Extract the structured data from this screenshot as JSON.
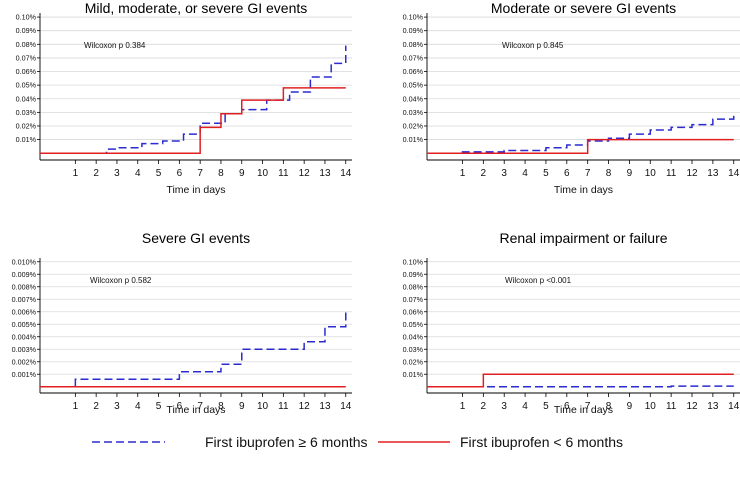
{
  "chart_data": [
    {
      "type": "line",
      "title": "Mild, moderate, or severe GI events",
      "xlabel": "Time in days",
      "ylabel": "",
      "annotation": "Wilcoxon p 0.384",
      "x_ticks": [
        1,
        2,
        3,
        4,
        5,
        6,
        7,
        8,
        9,
        10,
        11,
        12,
        13,
        14
      ],
      "y_ticks": [
        "0.01%",
        "0.02%",
        "0.03%",
        "0.04%",
        "0.05%",
        "0.06%",
        "0.07%",
        "0.08%",
        "0.09%",
        "0.10%"
      ],
      "y_tick_values": [
        0.01,
        0.02,
        0.03,
        0.04,
        0.05,
        0.06,
        0.07,
        0.08,
        0.09,
        0.1
      ],
      "xlim": [
        -0.7,
        14.3
      ],
      "ylim": [
        -0.005,
        0.103
      ],
      "series": [
        {
          "name": "First ibuprofen ≥ 6 months",
          "style": "dashed",
          "color": "#2b2bd0",
          "x": [
            -0.7,
            2,
            2.5,
            3,
            3.5,
            4.2,
            4.7,
            5.2,
            5.7,
            6.2,
            6.7,
            7,
            7.5,
            8.2,
            8.7,
            9,
            9.5,
            10.2,
            10.7,
            11.3,
            11.8,
            12.3,
            12.8,
            13.3,
            13.8,
            14
          ],
          "y": [
            0,
            0,
            0.003,
            0.004,
            0.004,
            0.007,
            0.007,
            0.009,
            0.009,
            0.014,
            0.014,
            0.022,
            0.022,
            0.029,
            0.029,
            0.032,
            0.032,
            0.039,
            0.039,
            0.045,
            0.045,
            0.056,
            0.056,
            0.066,
            0.066,
            0.079
          ]
        },
        {
          "name": "First ibuprofen < 6 months",
          "style": "solid",
          "color": "#e02020",
          "x": [
            -0.7,
            7,
            8,
            9,
            11,
            14
          ],
          "y": [
            0,
            0.019,
            0.029,
            0.039,
            0.048,
            0.048
          ]
        }
      ]
    },
    {
      "type": "line",
      "title": "Moderate or severe GI events",
      "xlabel": "Time in days",
      "ylabel": "",
      "annotation": "Wilcoxon p 0.845",
      "x_ticks": [
        1,
        2,
        3,
        4,
        5,
        6,
        7,
        8,
        9,
        10,
        11,
        12,
        13,
        14
      ],
      "y_ticks": [
        "0.01%",
        "0.02%",
        "0.03%",
        "0.04%",
        "0.05%",
        "0.06%",
        "0.07%",
        "0.08%",
        "0.09%",
        "0.10%"
      ],
      "y_tick_values": [
        0.01,
        0.02,
        0.03,
        0.04,
        0.05,
        0.06,
        0.07,
        0.08,
        0.09,
        0.1
      ],
      "xlim": [
        -0.7,
        14.3
      ],
      "ylim": [
        -0.005,
        0.103
      ],
      "series": [
        {
          "name": "First ibuprofen ≥ 6 months",
          "style": "dashed",
          "color": "#2b2bd0",
          "x": [
            -0.7,
            1,
            3,
            5,
            6,
            7,
            8,
            9,
            10,
            11,
            12,
            13,
            14
          ],
          "y": [
            0,
            0.001,
            0.002,
            0.004,
            0.006,
            0.009,
            0.011,
            0.014,
            0.017,
            0.019,
            0.021,
            0.025,
            0.03
          ]
        },
        {
          "name": "First ibuprofen < 6 months",
          "style": "solid",
          "color": "#e02020",
          "x": [
            -0.7,
            7,
            14
          ],
          "y": [
            0,
            0.01,
            0.01
          ]
        }
      ]
    },
    {
      "type": "line",
      "title": "Severe GI events",
      "xlabel": "Time in days",
      "ylabel": "",
      "annotation": "Wilcoxon p 0.582",
      "x_ticks": [
        1,
        2,
        3,
        4,
        5,
        6,
        7,
        8,
        9,
        10,
        11,
        12,
        13,
        14
      ],
      "y_ticks": [
        "0.001%",
        "0.002%",
        "0.003%",
        "0.004%",
        "0.005%",
        "0.006%",
        "0.007%",
        "0.008%",
        "0.009%",
        "0.010%"
      ],
      "y_tick_values": [
        0.001,
        0.002,
        0.003,
        0.004,
        0.005,
        0.006,
        0.007,
        0.008,
        0.009,
        0.01
      ],
      "xlim": [
        -0.7,
        14.3
      ],
      "ylim": [
        -0.0005,
        0.0103
      ],
      "series": [
        {
          "name": "First ibuprofen ≥ 6 months",
          "style": "dashed",
          "color": "#2b2bd0",
          "x": [
            -0.7,
            1,
            6,
            8,
            9,
            12,
            12.8,
            13,
            14
          ],
          "y": [
            0,
            0.0006,
            0.0012,
            0.0018,
            0.003,
            0.0036,
            0.0036,
            0.0048,
            0.006
          ]
        },
        {
          "name": "First ibuprofen < 6 months",
          "style": "solid",
          "color": "#e02020",
          "x": [
            -0.7,
            14
          ],
          "y": [
            0,
            0
          ]
        }
      ]
    },
    {
      "type": "line",
      "title": "Renal impairment or failure",
      "xlabel": "Time in days",
      "ylabel": "",
      "annotation": "Wilcoxon p <0.001",
      "x_ticks": [
        1,
        2,
        3,
        4,
        5,
        6,
        7,
        8,
        9,
        10,
        11,
        12,
        13,
        14
      ],
      "y_ticks": [
        "0.01%",
        "0.02%",
        "0.03%",
        "0.04%",
        "0.05%",
        "0.06%",
        "0.07%",
        "0.08%",
        "0.09%",
        "0.10%"
      ],
      "y_tick_values": [
        0.01,
        0.02,
        0.03,
        0.04,
        0.05,
        0.06,
        0.07,
        0.08,
        0.09,
        0.1
      ],
      "xlim": [
        -0.7,
        14.3
      ],
      "ylim": [
        -0.005,
        0.103
      ],
      "series": [
        {
          "name": "First ibuprofen ≥ 6 months",
          "style": "dashed",
          "color": "#2b2bd0",
          "x": [
            -0.7,
            2,
            11,
            14
          ],
          "y": [
            0,
            0,
            0.0005,
            0.0005
          ]
        },
        {
          "name": "First ibuprofen < 6 months",
          "style": "solid",
          "color": "#e02020",
          "x": [
            -0.7,
            2,
            14
          ],
          "y": [
            0,
            0.01,
            0.01
          ]
        }
      ]
    }
  ],
  "legend": {
    "items": [
      {
        "label": "First ibuprofen ≥ 6 months",
        "style": "dashed",
        "color": "#2b2bd0"
      },
      {
        "label": "First ibuprofen <  6 months",
        "style": "solid",
        "color": "#e02020"
      }
    ]
  }
}
